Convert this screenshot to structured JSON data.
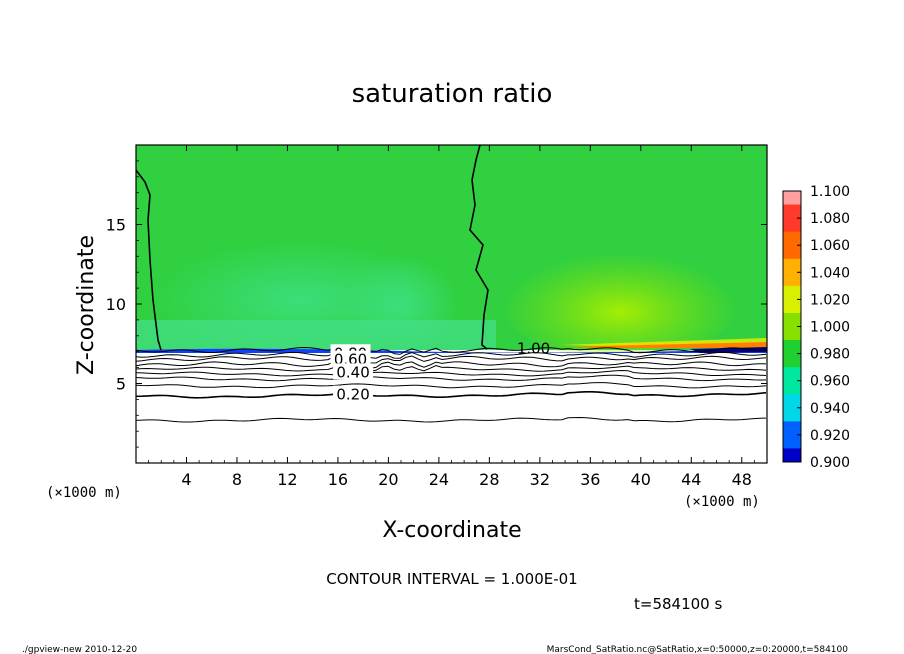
{
  "chart_data": {
    "type": "contour",
    "title": "saturation ratio",
    "xlabel": "X-coordinate",
    "ylabel": "Z-coordinate",
    "x_unit": "(×1000 m)",
    "z_unit": "(×1000 m)",
    "xlim": [
      0,
      50
    ],
    "ylim": [
      0,
      20
    ],
    "x_ticks": [
      4,
      8,
      12,
      16,
      20,
      24,
      28,
      32,
      36,
      40,
      44,
      48
    ],
    "y_ticks": [
      5,
      10,
      15
    ],
    "contour_labels": [
      {
        "text": "1.00",
        "x": 31.5,
        "z": 7.2
      },
      {
        "text": "0.80",
        "x": 17.0,
        "z": 6.9
      },
      {
        "text": "0.60",
        "x": 17.0,
        "z": 6.5
      },
      {
        "text": "0.40",
        "x": 17.2,
        "z": 5.7
      },
      {
        "text": "0.20",
        "x": 17.2,
        "z": 4.3
      }
    ],
    "contour_levels_z_at_x0": [
      7.1,
      6.8,
      6.55,
      6.2,
      5.9,
      5.6,
      5.3,
      4.85,
      4.2,
      2.7
    ],
    "contour_interval": "CONTOUR INTERVAL = 1.000E-01",
    "time": "t=584100 s",
    "colorbar": {
      "levels": [
        "1.100",
        "1.080",
        "1.060",
        "1.040",
        "1.020",
        "1.000",
        "0.980",
        "0.960",
        "0.940",
        "0.920",
        "0.900"
      ],
      "colors": [
        "#ff9f9f",
        "#ff3a2a",
        "#ff6a00",
        "#ffb000",
        "#d8f000",
        "#88e000",
        "#20d030",
        "#00e8a0",
        "#00d8e8",
        "#0060ff",
        "#0000c8",
        "#000090",
        "#5000a0"
      ]
    },
    "field_colors": {
      "main": "#30d040",
      "lower_band": "#40e070",
      "bright": "#88e000"
    }
  },
  "footer": {
    "left": "./gpview-new   2010-12-20",
    "right": "MarsCond_SatRatio.nc@SatRatio,x=0:50000,z=0:20000,t=584100"
  }
}
